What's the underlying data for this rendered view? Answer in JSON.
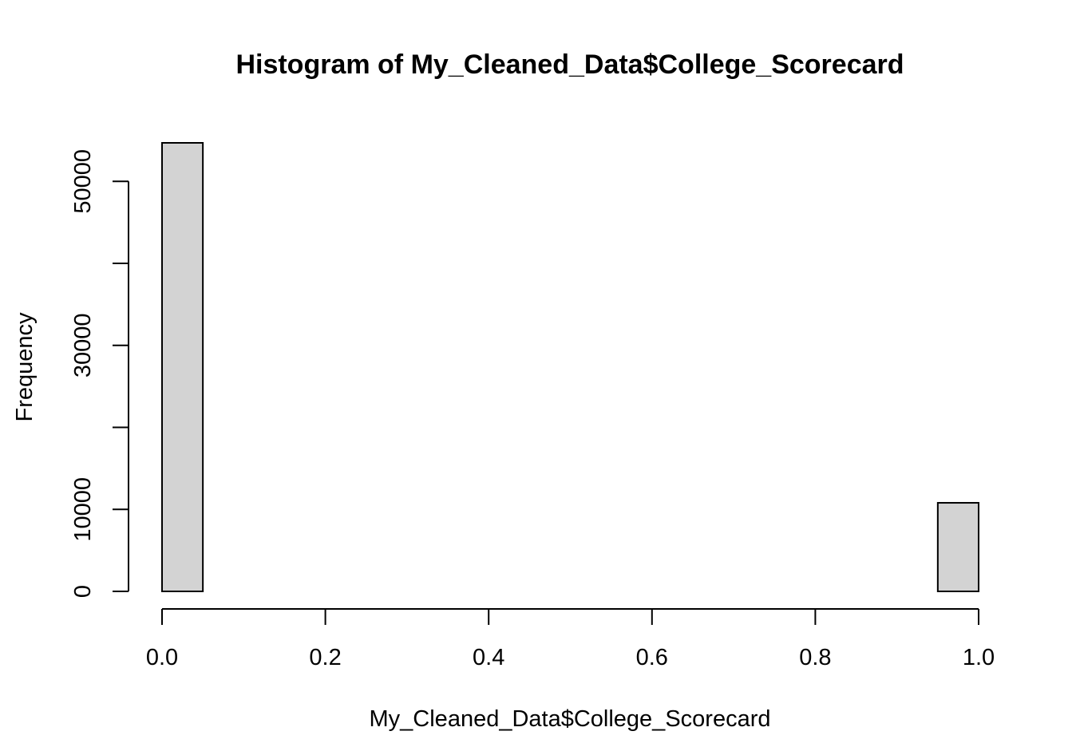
{
  "chart_data": {
    "type": "bar",
    "title": "Histogram of My_Cleaned_Data$College_Scorecard",
    "xlabel": "My_Cleaned_Data$College_Scorecard",
    "ylabel": "Frequency",
    "bin_edges": [
      0.0,
      0.05,
      0.1,
      0.15,
      0.2,
      0.25,
      0.3,
      0.35,
      0.4,
      0.45,
      0.5,
      0.55,
      0.6,
      0.65,
      0.7,
      0.75,
      0.8,
      0.85,
      0.9,
      0.95,
      1.0
    ],
    "values": [
      54700,
      0,
      0,
      0,
      0,
      0,
      0,
      0,
      0,
      0,
      0,
      0,
      0,
      0,
      0,
      0,
      0,
      0,
      0,
      10800
    ],
    "xlim": [
      0,
      1
    ],
    "ylim": [
      0,
      54700
    ],
    "x_ticks": [
      0.0,
      0.2,
      0.4,
      0.6,
      0.8,
      1.0
    ],
    "x_tick_labels": [
      "0.0",
      "0.2",
      "0.4",
      "0.6",
      "0.8",
      "1.0"
    ],
    "y_ticks": [
      0,
      10000,
      20000,
      30000,
      40000,
      50000
    ],
    "y_tick_labels": [
      "0",
      "10000",
      "",
      "30000",
      "",
      "50000"
    ],
    "grid": false,
    "bar_color": "#d3d3d3"
  }
}
